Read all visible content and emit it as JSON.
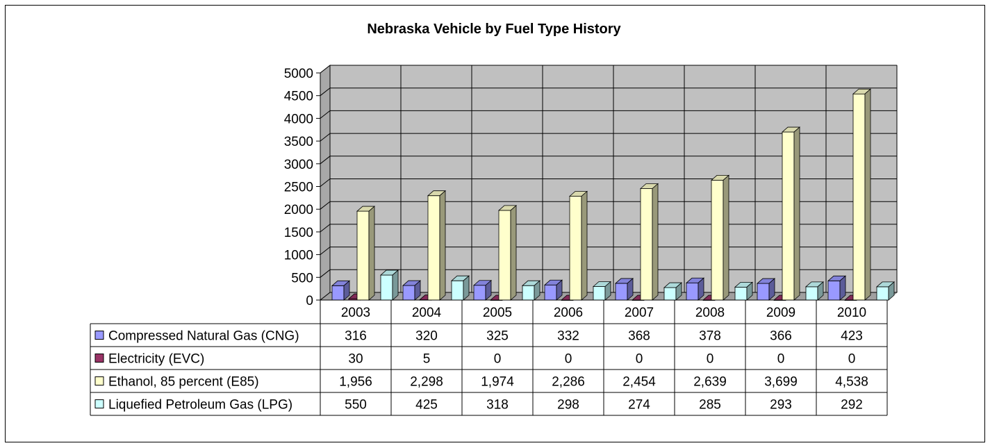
{
  "chart_data": {
    "type": "bar",
    "title": "Nebraska Vehicle by Fuel Type History",
    "categories": [
      "2003",
      "2004",
      "2005",
      "2006",
      "2007",
      "2008",
      "2009",
      "2010"
    ],
    "ylim": [
      0,
      5000
    ],
    "yticks": [
      0,
      500,
      1000,
      1500,
      2000,
      2500,
      3000,
      3500,
      4000,
      4500,
      5000
    ],
    "grid": true,
    "legend": "data-table",
    "series": [
      {
        "name": "Compressed Natural Gas (CNG)",
        "color": "#9999FF",
        "values": [
          316,
          320,
          325,
          332,
          368,
          378,
          366,
          423
        ],
        "labels": [
          "316",
          "320",
          "325",
          "332",
          "368",
          "378",
          "366",
          "423"
        ]
      },
      {
        "name": "Electricity (EVC)",
        "color": "#993366",
        "values": [
          30,
          5,
          0,
          0,
          0,
          0,
          0,
          0
        ],
        "labels": [
          "30",
          "5",
          "0",
          "0",
          "0",
          "0",
          "0",
          "0"
        ]
      },
      {
        "name": "Ethanol, 85 percent (E85)",
        "color": "#FFFFCC",
        "values": [
          1956,
          2298,
          1974,
          2286,
          2454,
          2639,
          3699,
          4538
        ],
        "labels": [
          "1,956",
          "2,298",
          "1,974",
          "2,286",
          "2,454",
          "2,639",
          "3,699",
          "4,538"
        ]
      },
      {
        "name": "Liquefied Petroleum Gas (LPG)",
        "color": "#CCFFFF",
        "values": [
          550,
          425,
          318,
          298,
          274,
          285,
          293,
          292
        ],
        "labels": [
          "550",
          "425",
          "318",
          "298",
          "274",
          "285",
          "293",
          "292"
        ]
      }
    ],
    "plot_background": "#C0C0C0"
  }
}
